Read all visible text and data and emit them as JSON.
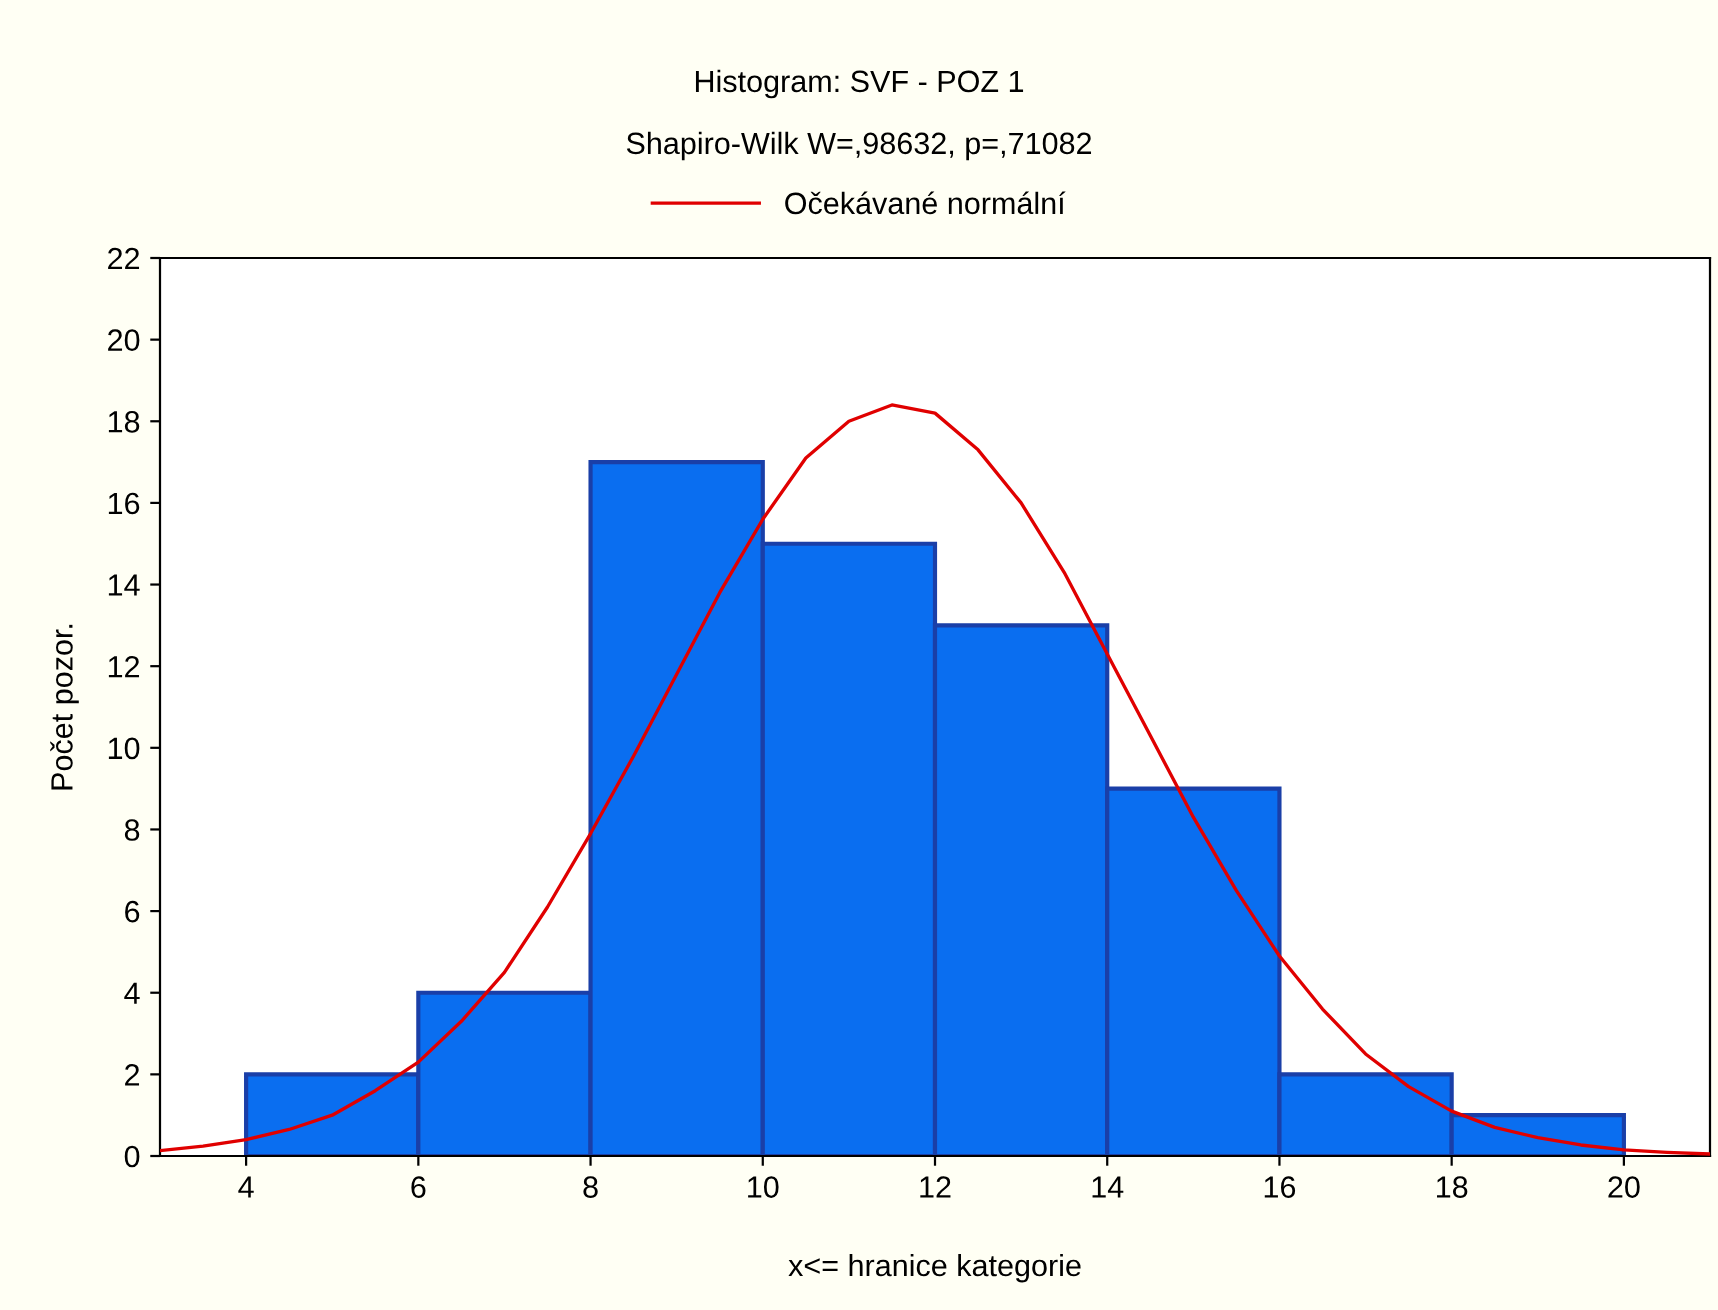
{
  "chart_data": {
    "type": "histogram",
    "title": "Histogram: SVF - POZ 1",
    "subtitle": "Shapiro-Wilk W=,98632, p=,71082",
    "xlabel": "x<= hranice kategorie",
    "ylabel": "Počet pozor.",
    "bins": [
      4,
      6,
      8,
      10,
      12,
      14,
      16,
      18,
      20
    ],
    "values": [
      2,
      4,
      17,
      15,
      13,
      9,
      2,
      1
    ],
    "color": "#0a6ef0",
    "series": [
      {
        "name": "Očekávané normální",
        "type": "line",
        "color": "#e00000",
        "line_style": "solid",
        "x": [
          3,
          3.5,
          4,
          4.5,
          5,
          5.5,
          6,
          6.5,
          7,
          7.5,
          8,
          8.5,
          9,
          9.5,
          10,
          10.5,
          11,
          11.5,
          12,
          12.5,
          13,
          13.5,
          14,
          14.5,
          15,
          15.5,
          16,
          16.5,
          17,
          17.5,
          18,
          18.5,
          19,
          19.5,
          20,
          20.5,
          21
        ],
        "values": [
          0.13,
          0.24,
          0.4,
          0.65,
          1.0,
          1.6,
          2.3,
          3.3,
          4.5,
          6.1,
          7.9,
          9.8,
          11.8,
          13.8,
          15.6,
          17.1,
          18.0,
          18.4,
          18.2,
          17.3,
          16.0,
          14.3,
          12.3,
          10.3,
          8.3,
          6.5,
          4.9,
          3.6,
          2.5,
          1.7,
          1.1,
          0.7,
          0.45,
          0.27,
          0.15,
          0.09,
          0.05
        ]
      }
    ],
    "xlim": [
      3,
      21
    ],
    "xticks": [
      4,
      6,
      8,
      10,
      12,
      14,
      16,
      18,
      20
    ],
    "ylim": [
      0,
      22
    ],
    "yticks": [
      0,
      2,
      4,
      6,
      8,
      10,
      12,
      14,
      16,
      18,
      20,
      22
    ],
    "grid": false,
    "legend": "top"
  }
}
